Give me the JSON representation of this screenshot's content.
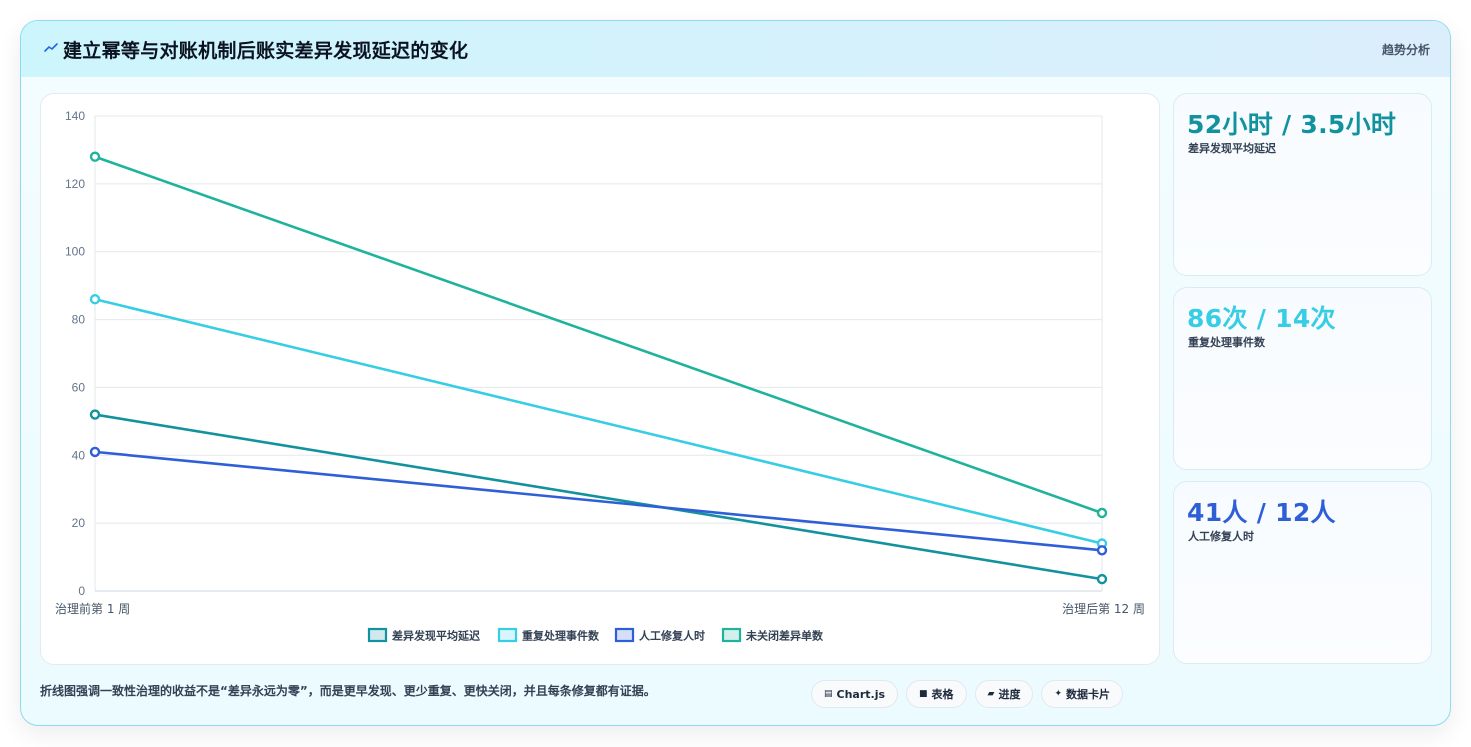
{
  "header": {
    "title": "建立幂等与对账机制后账实差异发现延迟的变化",
    "tag": "趋势分析"
  },
  "colors": {
    "delay": "#12929f",
    "repeat": "#37cde4",
    "manual": "#2f5fd6",
    "open": "#1fb39c"
  },
  "chart_data": {
    "type": "line",
    "categories": [
      "治理前第 1 周",
      "治理后第 12 周"
    ],
    "series": [
      {
        "name": "差异发现平均延迟",
        "values": [
          52,
          3.5
        ],
        "color": "#12929f"
      },
      {
        "name": "重复处理事件数",
        "values": [
          86,
          14
        ],
        "color": "#37cde4"
      },
      {
        "name": "人工修复人时",
        "values": [
          41,
          12
        ],
        "color": "#2f5fd6"
      },
      {
        "name": "未关闭差异单数",
        "values": [
          128,
          23
        ],
        "color": "#1fb39c"
      }
    ],
    "ylim": [
      0,
      140
    ],
    "yticks": [
      "0",
      "20",
      "40",
      "60",
      "80",
      "100",
      "120",
      "140"
    ],
    "grid": true,
    "legend": "bottom"
  },
  "stats": [
    {
      "value": "52小时 / 3.5小时",
      "label": "差异发现平均延迟",
      "color": "#12929f"
    },
    {
      "value": "86次 / 14次",
      "label": "重复处理事件数",
      "color": "#37cde4"
    },
    {
      "value": "41人 / 12人",
      "label": "人工修复人时",
      "color": "#2f5fd6"
    }
  ],
  "footer": {
    "note": "折线图强调一致性治理的收益不是“差异永远为零”，而是更早发现、更少重复、更快关闭，并且每条修复都有证据。",
    "chips": [
      {
        "icon": "chart-icon",
        "glyph": "▤",
        "label": "Chart.js"
      },
      {
        "icon": "table-icon",
        "glyph": "■",
        "label": "表格"
      },
      {
        "icon": "progress-icon",
        "glyph": "▰",
        "label": "进度"
      },
      {
        "icon": "sparkle-icon",
        "glyph": "✦",
        "label": "数据卡片"
      }
    ]
  }
}
